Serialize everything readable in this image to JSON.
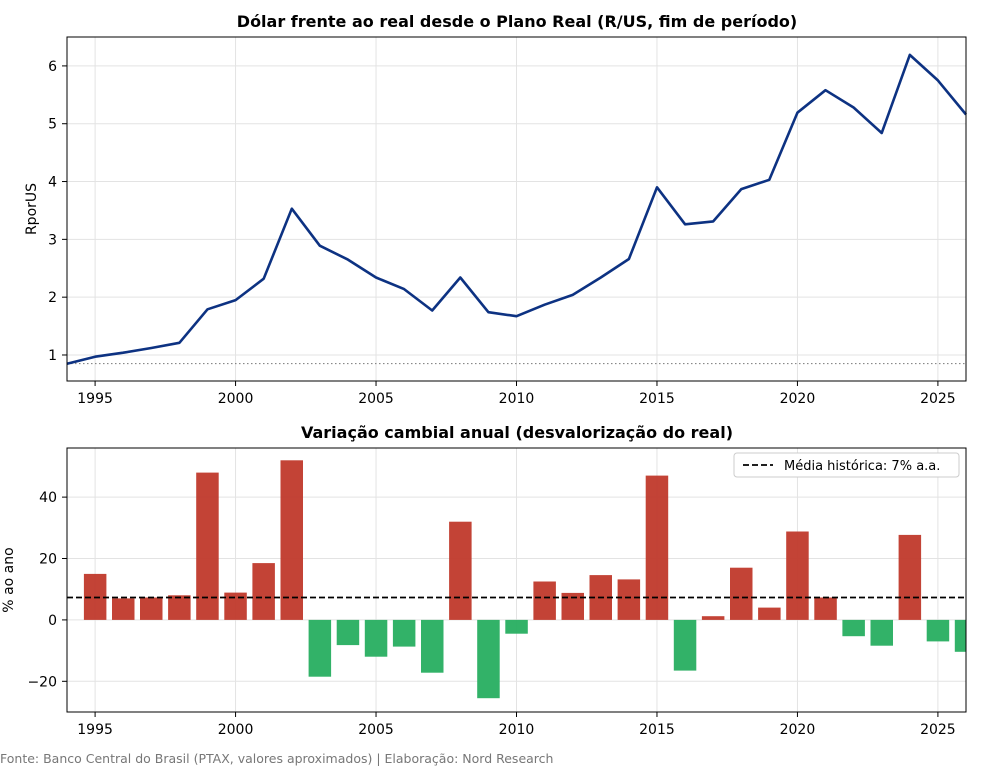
{
  "chart_data": [
    {
      "type": "line",
      "title": "Dólar frente ao real desde o Plano Real (R/US, fim de período)",
      "ylabel": "RporUS",
      "xlim": [
        1994,
        2026
      ],
      "ylim": [
        0.55,
        6.5
      ],
      "xticks": [
        "1995",
        "2000",
        "2005",
        "2010",
        "2015",
        "2020",
        "2025"
      ],
      "yticks": [
        "1",
        "2",
        "3",
        "4",
        "5",
        "6"
      ],
      "grid": true,
      "reference_line": 0.85,
      "line_color": "#0d3282",
      "reference_color": "#777777",
      "x": [
        1994,
        1995,
        1996,
        1997,
        1998,
        1999,
        2000,
        2001,
        2002,
        2003,
        2004,
        2005,
        2006,
        2007,
        2008,
        2009,
        2010,
        2011,
        2012,
        2013,
        2014,
        2015,
        2016,
        2017,
        2018,
        2019,
        2020,
        2021,
        2022,
        2023,
        2024,
        2025,
        2026
      ],
      "y": [
        0.85,
        0.97,
        1.04,
        1.12,
        1.21,
        1.79,
        1.95,
        2.32,
        3.53,
        2.89,
        2.65,
        2.34,
        2.14,
        1.77,
        2.34,
        1.74,
        1.67,
        1.87,
        2.04,
        2.34,
        2.66,
        3.9,
        3.26,
        3.31,
        3.87,
        4.03,
        5.19,
        5.58,
        5.28,
        4.84,
        6.19,
        5.75,
        5.16
      ]
    },
    {
      "type": "bar",
      "title": "Variação cambial anual (desvalorização do real)",
      "ylabel": "% ao ano",
      "xlim": [
        1994,
        2026
      ],
      "ylim": [
        -30,
        56
      ],
      "xticks": [
        "1995",
        "2000",
        "2005",
        "2010",
        "2015",
        "2020",
        "2025"
      ],
      "yticks": [
        "−20",
        "0",
        "20",
        "40"
      ],
      "grid": true,
      "positive_color": "#c0392b",
      "negative_color": "#27ae60",
      "mean_line": 7.3,
      "legend": {
        "label": "Média histórica: 7% a.a.",
        "position": "top-right"
      },
      "categories": [
        1995,
        1996,
        1997,
        1998,
        1999,
        2000,
        2001,
        2002,
        2003,
        2004,
        2005,
        2006,
        2007,
        2008,
        2009,
        2010,
        2011,
        2012,
        2013,
        2014,
        2015,
        2016,
        2017,
        2018,
        2019,
        2020,
        2021,
        2022,
        2023,
        2024,
        2025,
        2026
      ],
      "values": [
        15.0,
        7.0,
        7.3,
        8.0,
        48.0,
        8.9,
        18.5,
        52.0,
        -18.5,
        -8.2,
        -12.0,
        -8.7,
        -17.2,
        32.0,
        -25.5,
        -4.5,
        12.5,
        8.8,
        14.6,
        13.2,
        47.0,
        -16.5,
        1.2,
        17.0,
        4.0,
        28.8,
        7.3,
        -5.3,
        -8.4,
        27.7,
        -7.0,
        -10.4
      ]
    }
  ],
  "footer": {
    "source": "Fonte: Banco Central do Brasil (PTAX, valores aproximados) | Elaboração: Nord Research"
  }
}
